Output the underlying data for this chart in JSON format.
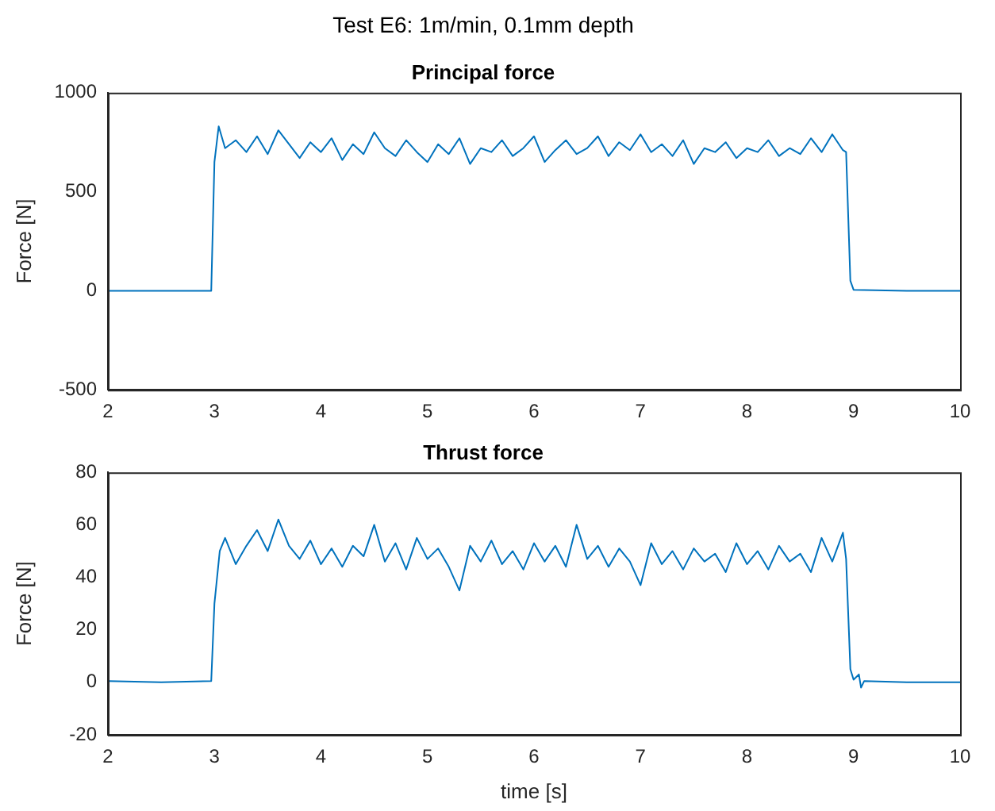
{
  "chart_data": [
    {
      "type": "line",
      "title": "Test E6: 1m/min, 0.1mm depth",
      "subtitle": "Principal force",
      "ylabel": "Force [N]",
      "xlim": [
        2,
        10
      ],
      "xticks": [
        2,
        3,
        4,
        5,
        6,
        7,
        8,
        9,
        10
      ],
      "ylim": [
        -500,
        1000
      ],
      "yticks": [
        -500,
        0,
        500,
        1000
      ],
      "series": [
        {
          "color": "#0072bd",
          "x": [
            2,
            2.5,
            2.97,
            3.0,
            3.04,
            3.1,
            3.2,
            3.3,
            3.4,
            3.5,
            3.6,
            3.7,
            3.8,
            3.9,
            4.0,
            4.1,
            4.2,
            4.3,
            4.4,
            4.5,
            4.6,
            4.7,
            4.8,
            4.9,
            5.0,
            5.1,
            5.2,
            5.3,
            5.4,
            5.5,
            5.6,
            5.7,
            5.8,
            5.9,
            6.0,
            6.1,
            6.2,
            6.3,
            6.4,
            6.5,
            6.6,
            6.7,
            6.8,
            6.9,
            7.0,
            7.1,
            7.2,
            7.3,
            7.4,
            7.5,
            7.6,
            7.7,
            7.8,
            7.9,
            8.0,
            8.1,
            8.2,
            8.3,
            8.4,
            8.5,
            8.6,
            8.7,
            8.8,
            8.9,
            8.93,
            8.97,
            9.0,
            9.5,
            10
          ],
          "values": [
            0,
            0,
            0,
            650,
            830,
            720,
            760,
            700,
            780,
            690,
            810,
            740,
            670,
            750,
            700,
            770,
            660,
            740,
            690,
            800,
            720,
            680,
            760,
            700,
            650,
            740,
            690,
            770,
            640,
            720,
            700,
            760,
            680,
            720,
            780,
            650,
            710,
            760,
            690,
            720,
            780,
            680,
            750,
            710,
            790,
            700,
            740,
            680,
            760,
            640,
            720,
            700,
            750,
            670,
            720,
            700,
            760,
            680,
            720,
            690,
            770,
            700,
            790,
            710,
            700,
            50,
            5,
            0,
            0
          ]
        }
      ]
    },
    {
      "type": "line",
      "title": "Thrust force",
      "xlabel": "time [s]",
      "ylabel": "Force [N]",
      "xlim": [
        2,
        10
      ],
      "xticks": [
        2,
        3,
        4,
        5,
        6,
        7,
        8,
        9,
        10
      ],
      "ylim": [
        -20,
        80
      ],
      "yticks": [
        -20,
        0,
        20,
        40,
        60,
        80
      ],
      "series": [
        {
          "color": "#0072bd",
          "x": [
            2,
            2.5,
            2.97,
            3.0,
            3.05,
            3.1,
            3.2,
            3.3,
            3.4,
            3.5,
            3.6,
            3.7,
            3.8,
            3.9,
            4.0,
            4.1,
            4.2,
            4.3,
            4.4,
            4.5,
            4.6,
            4.7,
            4.8,
            4.9,
            5.0,
            5.1,
            5.2,
            5.3,
            5.4,
            5.5,
            5.6,
            5.7,
            5.8,
            5.9,
            6.0,
            6.1,
            6.2,
            6.3,
            6.4,
            6.5,
            6.6,
            6.7,
            6.8,
            6.9,
            7.0,
            7.1,
            7.2,
            7.3,
            7.4,
            7.5,
            7.6,
            7.7,
            7.8,
            7.9,
            8.0,
            8.1,
            8.2,
            8.3,
            8.4,
            8.5,
            8.6,
            8.7,
            8.8,
            8.9,
            8.93,
            8.97,
            9.0,
            9.05,
            9.07,
            9.1,
            9.5,
            10
          ],
          "values": [
            0.5,
            0,
            0.5,
            30,
            50,
            55,
            45,
            52,
            58,
            50,
            62,
            52,
            47,
            54,
            45,
            51,
            44,
            52,
            48,
            60,
            46,
            53,
            43,
            55,
            47,
            51,
            44,
            35,
            52,
            46,
            54,
            45,
            50,
            43,
            53,
            46,
            52,
            44,
            60,
            47,
            52,
            44,
            51,
            46,
            37,
            53,
            45,
            50,
            43,
            51,
            46,
            49,
            42,
            53,
            45,
            50,
            43,
            52,
            46,
            49,
            42,
            55,
            46,
            57,
            47,
            5,
            1,
            3,
            -2,
            0.5,
            0,
            0
          ]
        }
      ]
    }
  ]
}
